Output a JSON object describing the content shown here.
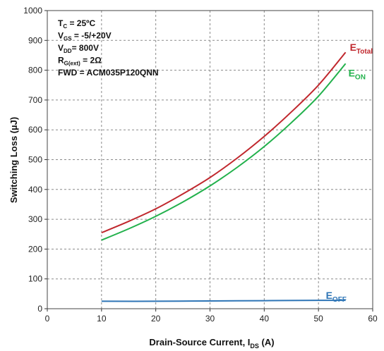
{
  "chart_data": {
    "type": "line",
    "xlabel": {
      "main": "Drain-Source Current, I",
      "sub": "DS",
      "unit": " (A)"
    },
    "ylabel": "Switching Loss  (µJ)",
    "xlim": [
      0,
      60
    ],
    "ylim": [
      0,
      1000
    ],
    "xticks": [
      "0",
      "10",
      "20",
      "30",
      "40",
      "50",
      "60"
    ],
    "yticks": [
      "0",
      "100",
      "200",
      "300",
      "400",
      "500",
      "600",
      "700",
      "800",
      "900",
      "1000"
    ],
    "grid": "dashed",
    "conditions": [
      {
        "main": "T",
        "sub": "C",
        "rest": " = 25ºC"
      },
      {
        "main": "V",
        "sub": "GS",
        "rest": " = -5/+20V"
      },
      {
        "main": "V",
        "sub": "DD",
        "rest": "= 800V"
      },
      {
        "main": "R",
        "sub": "G(ext)",
        "rest": " = 2Ω"
      },
      {
        "main": "FWD = ACM035P120QNN",
        "sub": "",
        "rest": ""
      }
    ],
    "series": [
      {
        "name": "E_Total",
        "label_main": "E",
        "label_sub": "Total",
        "color": "#c0272d",
        "x": [
          10,
          15,
          20,
          25,
          30,
          35,
          40,
          45,
          50,
          55
        ],
        "y": [
          255,
          293,
          335,
          385,
          440,
          505,
          578,
          660,
          750,
          860
        ]
      },
      {
        "name": "E_ON",
        "label_main": "E",
        "label_sub": "ON",
        "color": "#22b14c",
        "x": [
          10,
          15,
          20,
          25,
          30,
          35,
          40,
          45,
          50,
          55
        ],
        "y": [
          230,
          268,
          310,
          358,
          412,
          474,
          544,
          624,
          713,
          822
        ]
      },
      {
        "name": "E_OFF",
        "label_main": "E",
        "label_sub": "OFF",
        "color": "#2e75b6",
        "x": [
          10,
          20,
          30,
          40,
          50,
          55
        ],
        "y": [
          25,
          25,
          26,
          27,
          28,
          28
        ]
      }
    ]
  }
}
